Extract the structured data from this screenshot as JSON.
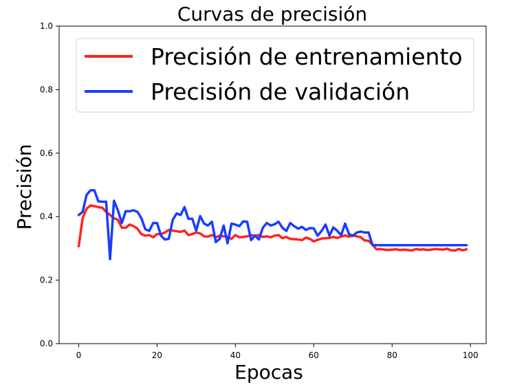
{
  "chart_data": {
    "type": "line",
    "title": "Curvas de precisión",
    "xlabel": "Epocas",
    "ylabel": "Precisión",
    "xlim": [
      -5,
      104
    ],
    "ylim": [
      0,
      1
    ],
    "xticks": [
      0,
      20,
      40,
      60,
      80,
      100
    ],
    "yticks": [
      0.0,
      0.2,
      0.4,
      0.6,
      0.8,
      1.0
    ],
    "xtick_labels": [
      "0",
      "20",
      "40",
      "60",
      "80",
      "100"
    ],
    "ytick_labels": [
      "0.0",
      "0.2",
      "0.4",
      "0.6",
      "0.8",
      "1.0"
    ],
    "grid": false,
    "legend_position": "top-right",
    "x": [
      0,
      1,
      2,
      3,
      4,
      5,
      6,
      7,
      8,
      9,
      10,
      11,
      12,
      13,
      14,
      15,
      16,
      17,
      18,
      19,
      20,
      21,
      22,
      23,
      24,
      25,
      26,
      27,
      28,
      29,
      30,
      31,
      32,
      33,
      34,
      35,
      36,
      37,
      38,
      39,
      40,
      41,
      42,
      43,
      44,
      45,
      46,
      47,
      48,
      49,
      50,
      51,
      52,
      53,
      54,
      55,
      56,
      57,
      58,
      59,
      60,
      61,
      62,
      63,
      64,
      65,
      66,
      67,
      68,
      69,
      70,
      71,
      72,
      73,
      74,
      75,
      76,
      77,
      78,
      79,
      80,
      81,
      82,
      83,
      84,
      85,
      86,
      87,
      88,
      89,
      90,
      91,
      92,
      93,
      94,
      95,
      96,
      97,
      98,
      99
    ],
    "series": [
      {
        "name": "Precisión de entrenamiento",
        "color": "#ff2222",
        "values": [
          0.307,
          0.395,
          0.425,
          0.435,
          0.433,
          0.43,
          0.428,
          0.415,
          0.405,
          0.395,
          0.39,
          0.365,
          0.365,
          0.375,
          0.37,
          0.362,
          0.345,
          0.34,
          0.342,
          0.335,
          0.345,
          0.345,
          0.35,
          0.358,
          0.356,
          0.354,
          0.352,
          0.356,
          0.342,
          0.345,
          0.35,
          0.347,
          0.338,
          0.337,
          0.342,
          0.335,
          0.34,
          0.338,
          0.336,
          0.33,
          0.342,
          0.335,
          0.336,
          0.338,
          0.342,
          0.34,
          0.342,
          0.336,
          0.338,
          0.335,
          0.34,
          0.342,
          0.332,
          0.336,
          0.33,
          0.329,
          0.328,
          0.326,
          0.334,
          0.33,
          0.322,
          0.327,
          0.331,
          0.332,
          0.333,
          0.336,
          0.333,
          0.337,
          0.341,
          0.337,
          0.34,
          0.338,
          0.335,
          0.325,
          0.324,
          0.312,
          0.297,
          0.298,
          0.296,
          0.295,
          0.296,
          0.297,
          0.295,
          0.296,
          0.295,
          0.293,
          0.298,
          0.296,
          0.297,
          0.295,
          0.296,
          0.298,
          0.297,
          0.296,
          0.299,
          0.294,
          0.293,
          0.298,
          0.294,
          0.297
        ]
      },
      {
        "name": "Precisión de validación",
        "color": "#1a3cff",
        "values": [
          0.405,
          0.415,
          0.468,
          0.483,
          0.483,
          0.448,
          0.447,
          0.447,
          0.266,
          0.45,
          0.42,
          0.38,
          0.417,
          0.417,
          0.42,
          0.415,
          0.395,
          0.36,
          0.355,
          0.38,
          0.38,
          0.34,
          0.328,
          0.33,
          0.39,
          0.41,
          0.405,
          0.43,
          0.393,
          0.393,
          0.356,
          0.402,
          0.378,
          0.372,
          0.384,
          0.32,
          0.33,
          0.372,
          0.316,
          0.378,
          0.375,
          0.37,
          0.385,
          0.384,
          0.326,
          0.34,
          0.328,
          0.365,
          0.38,
          0.372,
          0.376,
          0.384,
          0.365,
          0.355,
          0.38,
          0.37,
          0.362,
          0.368,
          0.358,
          0.364,
          0.363,
          0.34,
          0.355,
          0.375,
          0.34,
          0.366,
          0.355,
          0.342,
          0.378,
          0.345,
          0.34,
          0.35,
          0.353,
          0.35,
          0.35,
          0.31,
          0.31,
          0.31,
          0.31,
          0.31,
          0.31,
          0.31,
          0.31,
          0.31,
          0.31,
          0.31,
          0.31,
          0.31,
          0.31,
          0.31,
          0.31,
          0.31,
          0.31,
          0.31,
          0.31,
          0.31,
          0.31,
          0.31,
          0.31,
          0.31
        ]
      }
    ]
  }
}
